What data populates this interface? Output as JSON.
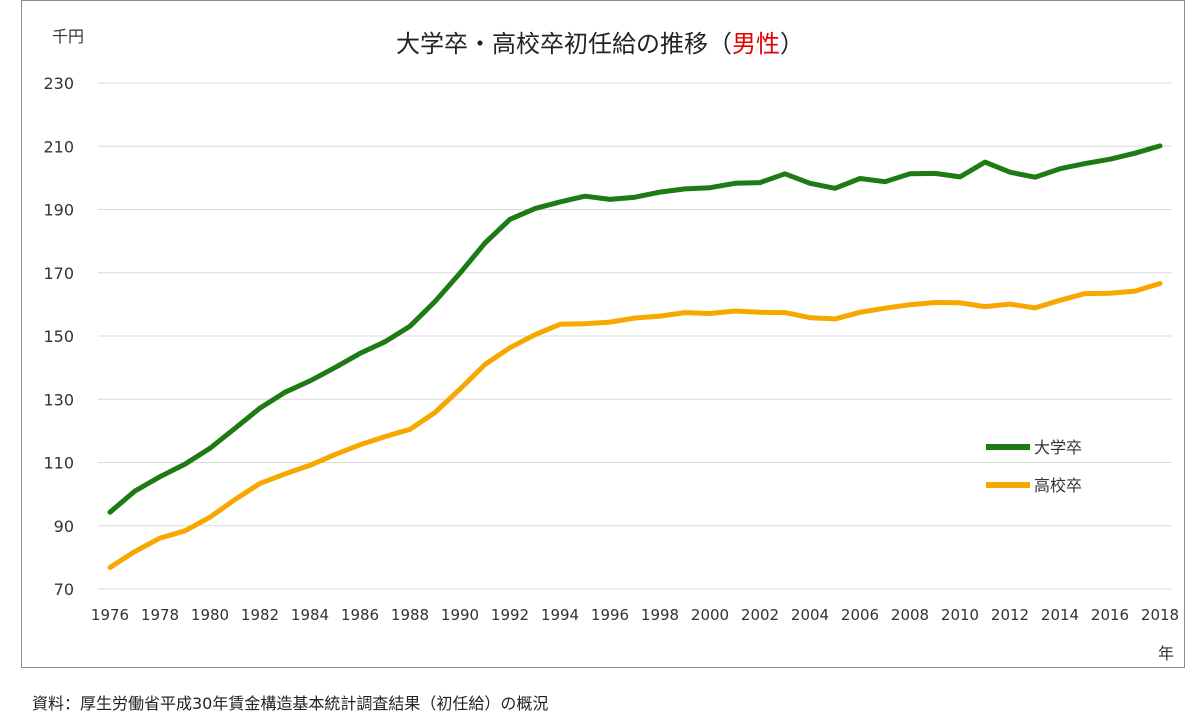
{
  "colors": {
    "university": "#1e7a12",
    "highschool": "#f6a800",
    "gender_highlight": "#e60000",
    "grid": "#d9d9d9",
    "text": "#333333"
  },
  "chart_data": {
    "type": "line",
    "title_main": "大学卒・高校卒初任給の推移（",
    "title_highlight": "男性",
    "title_end": "）",
    "y_unit_label": "千円",
    "x_unit_label": "年",
    "ylim": [
      70,
      230
    ],
    "yticks": [
      70,
      90,
      110,
      130,
      150,
      170,
      190,
      210,
      230
    ],
    "xlim": [
      1976,
      2018
    ],
    "xticks": [
      1976,
      1978,
      1980,
      1982,
      1984,
      1986,
      1988,
      1990,
      1992,
      1994,
      1996,
      1998,
      2000,
      2002,
      2004,
      2006,
      2008,
      2010,
      2012,
      2014,
      2016,
      2018
    ],
    "grid": true,
    "legend_position": "right",
    "x": [
      1976,
      1977,
      1978,
      1979,
      1980,
      1981,
      1982,
      1983,
      1984,
      1985,
      1986,
      1987,
      1988,
      1989,
      1990,
      1991,
      1992,
      1993,
      1994,
      1995,
      1996,
      1997,
      1998,
      1999,
      2000,
      2001,
      2002,
      2003,
      2004,
      2005,
      2006,
      2007,
      2008,
      2009,
      2010,
      2011,
      2012,
      2013,
      2014,
      2015,
      2016,
      2017,
      2018
    ],
    "series": [
      {
        "name": "大学卒",
        "values": [
          94.3,
          101.0,
          105.5,
          109.5,
          114.5,
          120.8,
          127.2,
          132.2,
          135.8,
          140.0,
          144.5,
          148.2,
          153.1,
          160.9,
          169.9,
          179.4,
          186.9,
          190.3,
          192.4,
          194.2,
          193.2,
          193.9,
          195.5,
          196.5,
          196.9,
          198.3,
          198.5,
          201.3,
          198.3,
          196.7,
          199.8,
          198.8,
          201.3,
          201.4,
          200.3,
          205.0,
          201.8,
          200.2,
          202.9,
          204.5,
          205.9,
          207.8,
          210.1
        ]
      },
      {
        "name": "高校卒",
        "values": [
          76.8,
          81.9,
          86.1,
          88.4,
          92.7,
          98.3,
          103.4,
          106.4,
          109.1,
          112.5,
          115.6,
          118.2,
          120.5,
          125.8,
          133.2,
          141.0,
          146.3,
          150.4,
          153.7,
          153.9,
          154.4,
          155.7,
          156.3,
          157.4,
          157.1,
          157.9,
          157.5,
          157.4,
          155.8,
          155.4,
          157.5,
          158.8,
          159.9,
          160.6,
          160.5,
          159.3,
          160.1,
          158.9,
          161.3,
          163.4,
          163.5,
          164.2,
          166.6
        ]
      }
    ]
  },
  "source_note": "資料：厚生労働省平成30年賃金構造基本統計調査結果（初任給）の概況"
}
